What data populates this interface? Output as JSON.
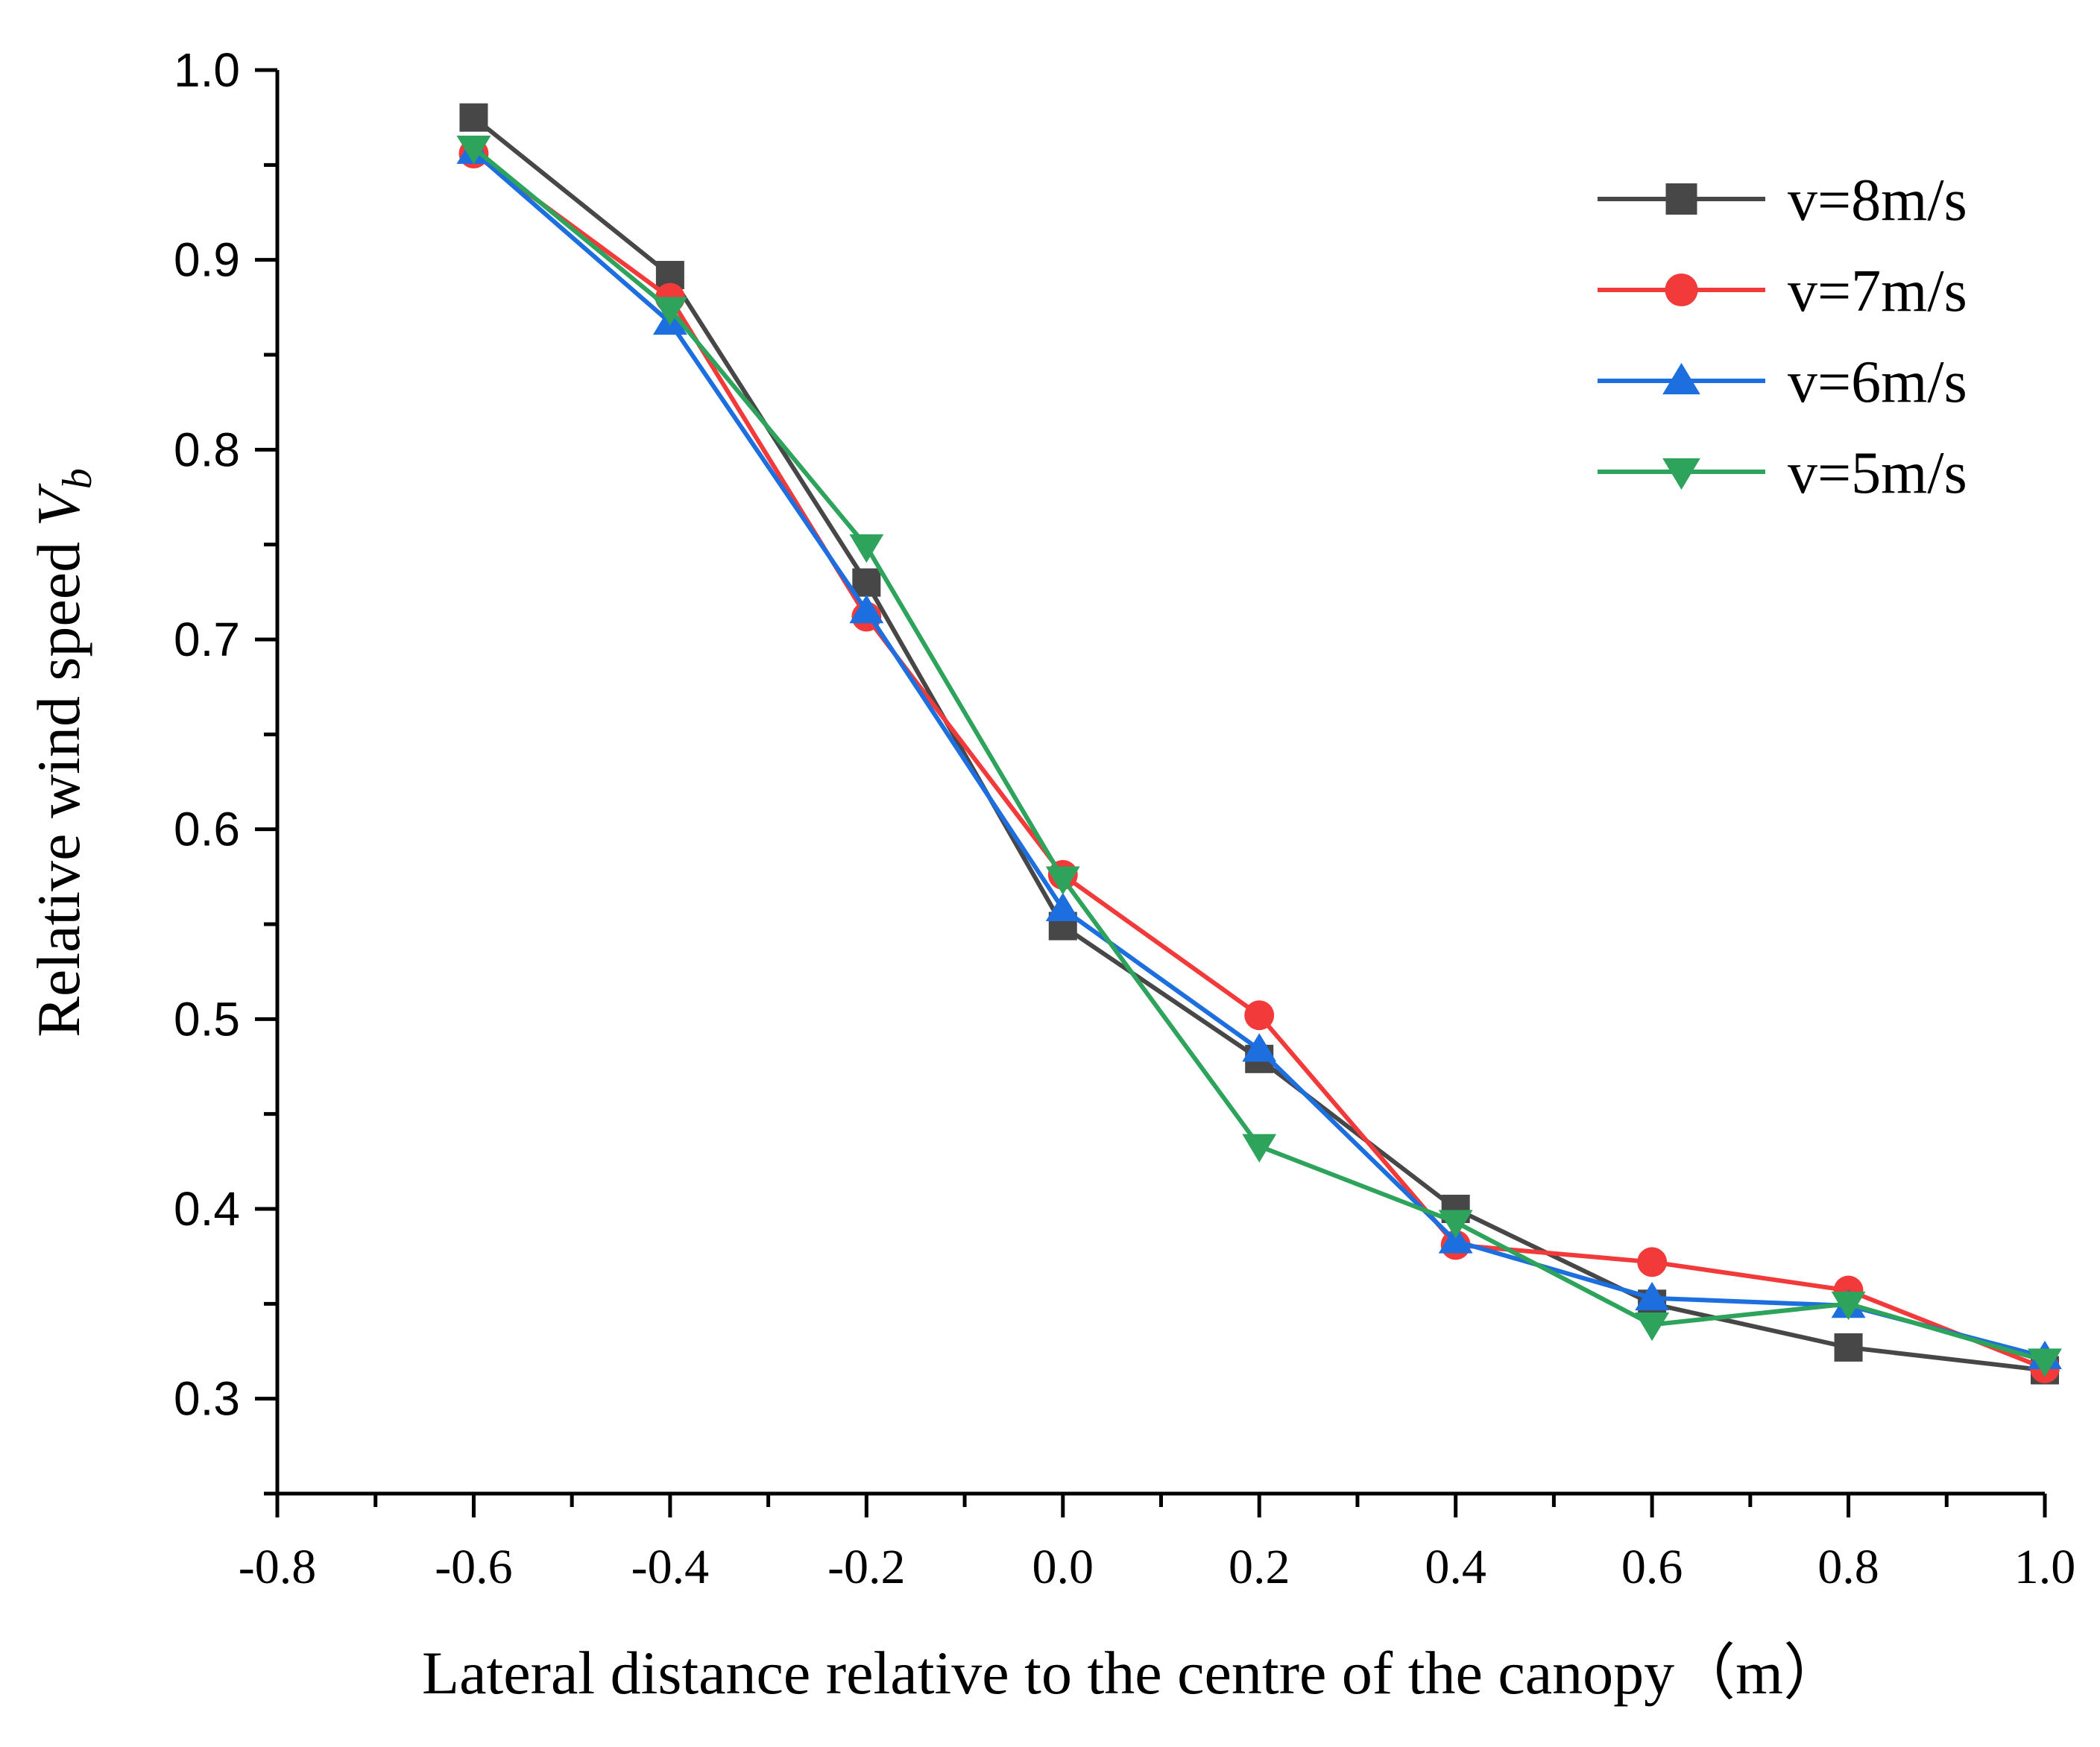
{
  "chart_data": {
    "type": "line",
    "title": "",
    "xlabel": "Lateral distance relative to the centre of the canopy（m）",
    "ylabel_main": "Relative wind speed ",
    "ylabel_symbol": "V",
    "ylabel_sub": "b",
    "xlim": [
      -0.8,
      1.0
    ],
    "ylim": [
      0.25,
      1.0
    ],
    "x_ticks": [
      -0.8,
      -0.6,
      -0.4,
      -0.2,
      0.0,
      0.2,
      0.4,
      0.6,
      0.8,
      1.0
    ],
    "x_tick_labels": [
      "-0.8",
      "-0.6",
      "-0.4",
      "-0.2",
      "0.0",
      "0.2",
      "0.4",
      "0.6",
      "0.8",
      "1.0"
    ],
    "y_ticks": [
      0.3,
      0.4,
      0.5,
      0.6,
      0.7,
      0.8,
      0.9,
      1.0
    ],
    "y_tick_labels": [
      "0.3",
      "0.4",
      "0.5",
      "0.6",
      "0.7",
      "0.8",
      "0.9",
      "1.0"
    ],
    "legend_position": "top-right",
    "x": [
      -0.6,
      -0.4,
      -0.2,
      0.0,
      0.2,
      0.4,
      0.6,
      0.8,
      1.0
    ],
    "series": [
      {
        "name": "v=8m/s",
        "color": "#474747",
        "marker": "square",
        "values": [
          0.975,
          0.892,
          0.73,
          0.549,
          0.479,
          0.4,
          0.35,
          0.327,
          0.315
        ]
      },
      {
        "name": "v=7m/s",
        "color": "#f23a3a",
        "marker": "circle",
        "values": [
          0.956,
          0.88,
          0.712,
          0.576,
          0.502,
          0.381,
          0.372,
          0.357,
          0.316
        ]
      },
      {
        "name": "v=6m/s",
        "color": "#1d6fe0",
        "marker": "triangle-up",
        "values": [
          0.957,
          0.867,
          0.715,
          0.558,
          0.484,
          0.383,
          0.353,
          0.349,
          0.322
        ]
      },
      {
        "name": "v=5m/s",
        "color": "#2ea35c",
        "marker": "triangle-down",
        "values": [
          0.959,
          0.874,
          0.749,
          0.574,
          0.433,
          0.393,
          0.339,
          0.35,
          0.32
        ]
      }
    ]
  }
}
